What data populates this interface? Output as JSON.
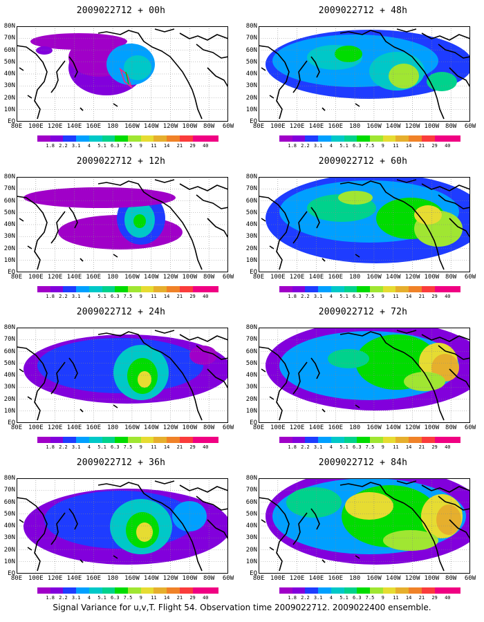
{
  "panels": [
    {
      "title": "2009022712 + 00h",
      "lead": "00h"
    },
    {
      "title": "2009022712 + 48h",
      "lead": "48h"
    },
    {
      "title": "2009022712 + 12h",
      "lead": "12h"
    },
    {
      "title": "2009022712 + 60h",
      "lead": "60h"
    },
    {
      "title": "2009022712 + 24h",
      "lead": "24h"
    },
    {
      "title": "2009022712 + 72h",
      "lead": "72h"
    },
    {
      "title": "2009022712 + 36h",
      "lead": "36h"
    },
    {
      "title": "2009022712 + 84h",
      "lead": "84h"
    }
  ],
  "lat_labels": [
    "80N",
    "70N",
    "60N",
    "50N",
    "40N",
    "30N",
    "20N",
    "10N",
    "EQ"
  ],
  "lon_labels": [
    "80E",
    "100E",
    "120E",
    "140E",
    "160E",
    "180",
    "160W",
    "140W",
    "120W",
    "100W",
    "80W",
    "60W"
  ],
  "colorbar": {
    "labels": [
      "1.8",
      "2.2",
      "3.1",
      "4",
      "5.1",
      "6.3",
      "7.5",
      "9",
      "11",
      "14",
      "21",
      "29",
      "40"
    ],
    "colors": [
      "#a000c8",
      "#8200dc",
      "#1e3cff",
      "#00a0ff",
      "#00c8c8",
      "#00d28c",
      "#00dc00",
      "#a0e632",
      "#e6dc32",
      "#e6af2d",
      "#f08228",
      "#fa3c3c",
      "#f00082"
    ]
  },
  "footer": "Signal Variance for u,v,T. Flight 54. Observation time 2009022712. 2009022400 ensemble."
}
